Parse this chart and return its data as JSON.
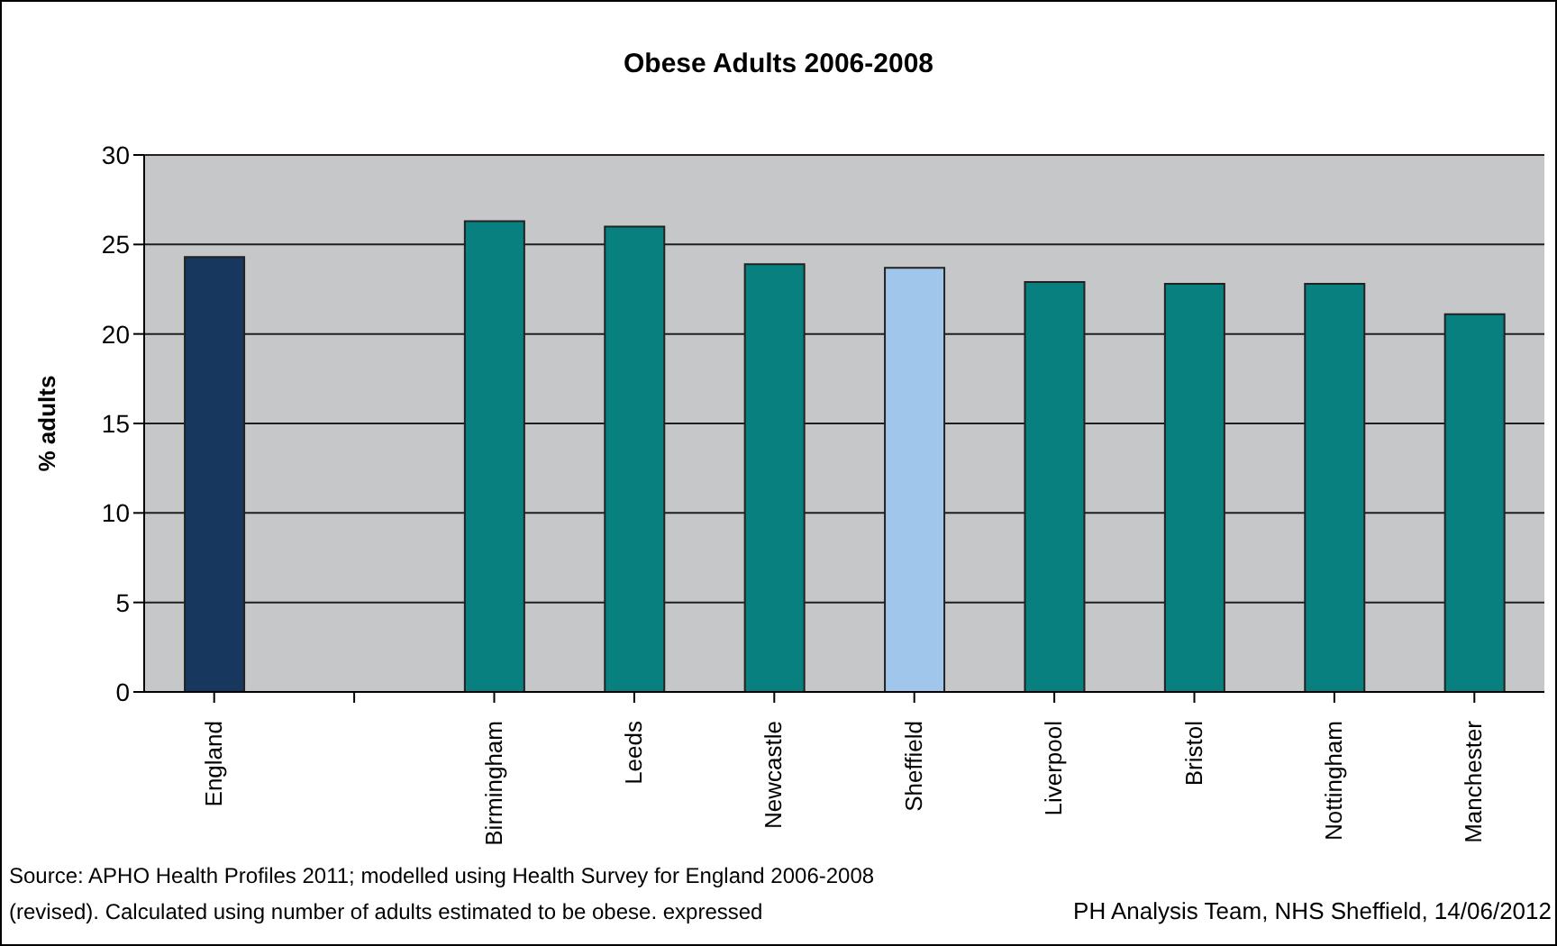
{
  "chart_data": {
    "type": "bar",
    "title": "Obese Adults 2006-2008",
    "ylabel": "% adults",
    "categories": [
      "England",
      null,
      "Birmingham",
      "Leeds",
      "Newcastle",
      "Sheffield",
      "Liverpool",
      "Bristol",
      "Nottingham",
      "Manchester"
    ],
    "values": [
      24.3,
      null,
      26.3,
      26.0,
      23.9,
      23.7,
      22.9,
      22.8,
      22.8,
      21.1
    ],
    "colors": [
      "#17375e",
      null,
      "#088080",
      "#088080",
      "#088080",
      "#a0c6eb",
      "#088080",
      "#088080",
      "#088080",
      "#088080"
    ],
    "ylim": [
      0,
      30
    ],
    "yticks": [
      0,
      5,
      10,
      15,
      20,
      25,
      30
    ],
    "grid": "y",
    "legend": false,
    "annotations": [
      "Source: APHO Health Profiles 2011; modelled using Health Survey for England 2006-2008 (revised).  Calculated using number of adults estimated to be obese. expressed",
      "PH Analysis Team, NHS Sheffield, 14/06/2012"
    ]
  }
}
